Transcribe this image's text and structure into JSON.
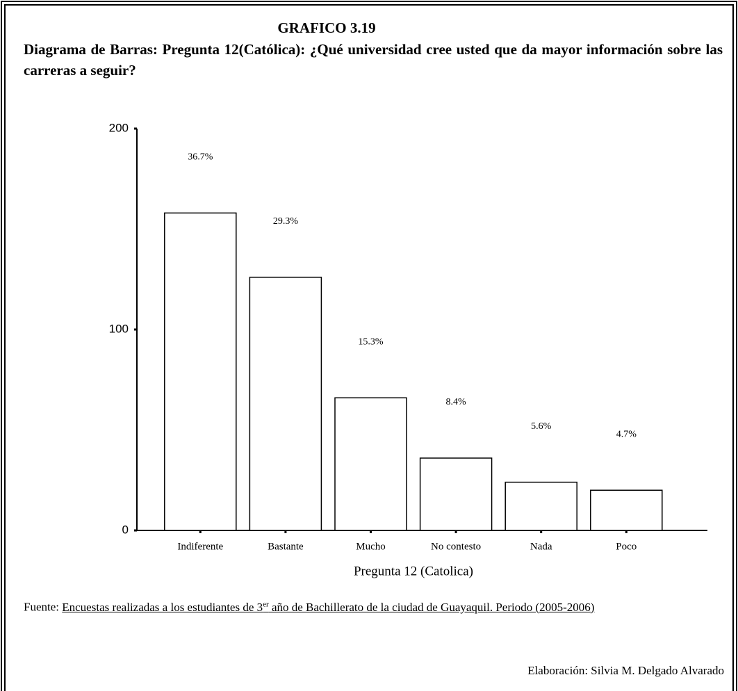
{
  "header": {
    "title": "GRAFICO 3.19",
    "subtitle": "Diagrama de Barras: Pregunta 12(Católica): ¿Qué universidad cree usted que da mayor información sobre las carreras a seguir?"
  },
  "chart_data": {
    "type": "bar",
    "categories": [
      "Indiferente",
      "Bastante",
      "Mucho",
      "No contesto",
      "Nada",
      "Poco"
    ],
    "values": [
      158,
      126,
      66,
      36,
      24,
      20
    ],
    "annotations": [
      "36.7%",
      "29.3%",
      "15.3%",
      "8.4%",
      "5.6%",
      "4.7%"
    ],
    "color": "#ffffff",
    "xlabel": "Pregunta 12 (Catolica)",
    "ylim": [
      0,
      200
    ],
    "yticks": [
      0,
      100,
      200
    ],
    "grid": false
  },
  "footer": {
    "source_label": "Fuente:",
    "source_text_1": "Encuestas realizadas a los estudiantes de 3",
    "source_sup": "er",
    "source_text_2": " año de Bachillerato de la ciudad de Guayaquil. Periodo (2005-2006)",
    "credit": "Elaboración: Silvia M. Delgado Alvarado"
  }
}
